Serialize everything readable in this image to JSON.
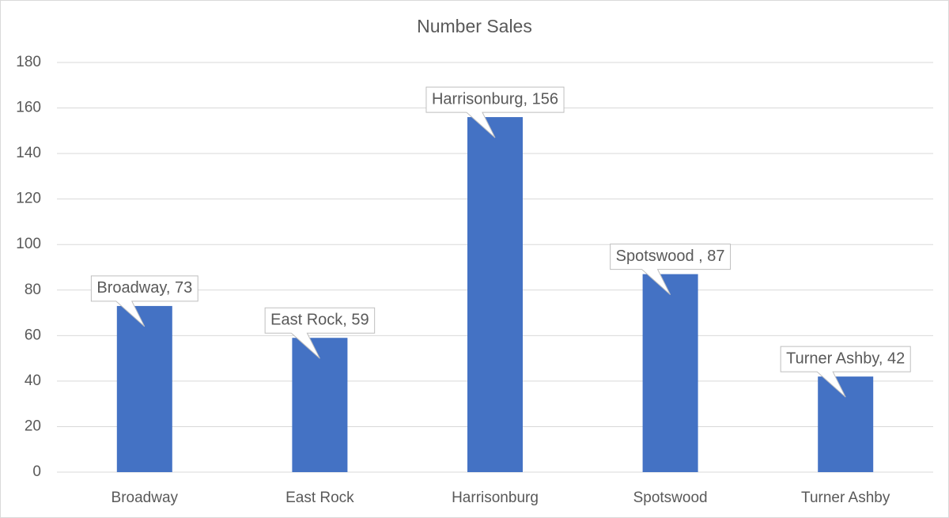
{
  "chart_data": {
    "type": "bar",
    "title": "Number Sales",
    "categories": [
      "Broadway",
      "East Rock",
      "Harrisonburg",
      "Spotswood",
      "Turner Ashby"
    ],
    "values": [
      73,
      59,
      156,
      87,
      42
    ],
    "value_labels": [
      "Broadway, 73",
      "East Rock, 59",
      "Harrisonburg, 156",
      "Spotswood , 87",
      "Turner Ashby, 42"
    ],
    "color": "#4472c4",
    "ylim": [
      0,
      180
    ],
    "yticks": [
      0,
      20,
      40,
      60,
      80,
      100,
      120,
      140,
      160,
      180
    ],
    "grid": true
  }
}
